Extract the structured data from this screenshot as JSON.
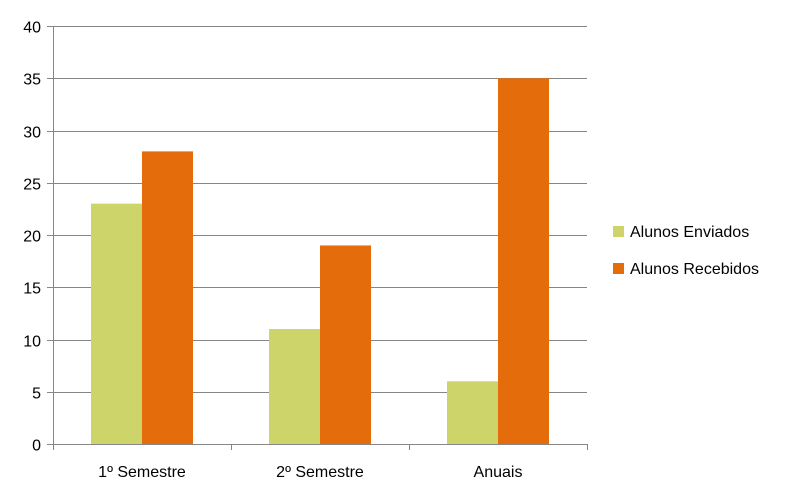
{
  "chart_data": {
    "type": "bar",
    "categories": [
      "1º Semestre",
      "2º Semestre",
      "Anuais"
    ],
    "series": [
      {
        "name": "Alunos Enviados",
        "values": [
          23,
          11,
          6
        ],
        "color": "#CDD46A"
      },
      {
        "name": "Alunos Recebidos",
        "values": [
          28,
          19,
          35
        ],
        "color": "#E46C0A"
      }
    ],
    "ylim": [
      0,
      40
    ],
    "yticks": [
      0,
      5,
      10,
      15,
      20,
      25,
      30,
      35,
      40
    ],
    "grid": true,
    "legend_position": "right",
    "gridline_color": "#868686"
  }
}
